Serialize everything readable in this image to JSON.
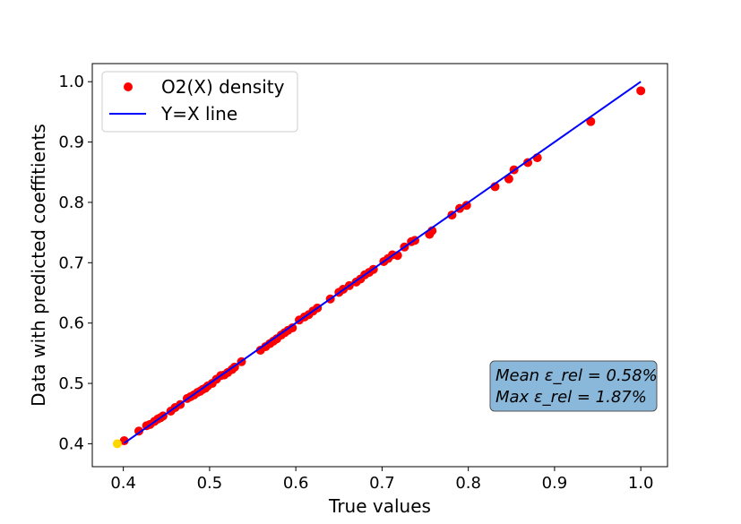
{
  "chart_data": {
    "type": "scatter",
    "title": "",
    "xlabel": "True values",
    "ylabel": "Data with predicted coeffitients",
    "xlim": [
      0.364,
      1.031
    ],
    "ylim": [
      0.362,
      1.03
    ],
    "xticks": [
      "0.4",
      "0.5",
      "0.6",
      "0.7",
      "0.8",
      "0.9",
      "1.0"
    ],
    "yticks": [
      "0.4",
      "0.5",
      "0.6",
      "0.7",
      "0.8",
      "0.9",
      "1.0"
    ],
    "grid": false,
    "legend_position": "top-left",
    "series": [
      {
        "name": "O2(X) density",
        "kind": "scatter",
        "color": "#ff0000",
        "points": [
          [
            0.401,
            0.405
          ],
          [
            0.418,
            0.421
          ],
          [
            0.427,
            0.43
          ],
          [
            0.431,
            0.432
          ],
          [
            0.436,
            0.437
          ],
          [
            0.44,
            0.441
          ],
          [
            0.443,
            0.443
          ],
          [
            0.446,
            0.446
          ],
          [
            0.455,
            0.454
          ],
          [
            0.46,
            0.46
          ],
          [
            0.466,
            0.465
          ],
          [
            0.474,
            0.475
          ],
          [
            0.478,
            0.478
          ],
          [
            0.482,
            0.481
          ],
          [
            0.486,
            0.485
          ],
          [
            0.489,
            0.487
          ],
          [
            0.492,
            0.49
          ],
          [
            0.495,
            0.492
          ],
          [
            0.498,
            0.496
          ],
          [
            0.503,
            0.5
          ],
          [
            0.508,
            0.507
          ],
          [
            0.513,
            0.513
          ],
          [
            0.517,
            0.514
          ],
          [
            0.521,
            0.518
          ],
          [
            0.526,
            0.523
          ],
          [
            0.529,
            0.527
          ],
          [
            0.537,
            0.536
          ],
          [
            0.559,
            0.555
          ],
          [
            0.565,
            0.561
          ],
          [
            0.57,
            0.566
          ],
          [
            0.574,
            0.57
          ],
          [
            0.578,
            0.574
          ],
          [
            0.583,
            0.58
          ],
          [
            0.587,
            0.584
          ],
          [
            0.591,
            0.588
          ],
          [
            0.596,
            0.592
          ],
          [
            0.604,
            0.605
          ],
          [
            0.61,
            0.61
          ],
          [
            0.615,
            0.614
          ],
          [
            0.62,
            0.62
          ],
          [
            0.625,
            0.625
          ],
          [
            0.64,
            0.64
          ],
          [
            0.65,
            0.651
          ],
          [
            0.655,
            0.656
          ],
          [
            0.662,
            0.662
          ],
          [
            0.67,
            0.668
          ],
          [
            0.675,
            0.673
          ],
          [
            0.68,
            0.68
          ],
          [
            0.685,
            0.684
          ],
          [
            0.69,
            0.689
          ],
          [
            0.702,
            0.702
          ],
          [
            0.707,
            0.707
          ],
          [
            0.712,
            0.713
          ],
          [
            0.718,
            0.712
          ],
          [
            0.726,
            0.726
          ],
          [
            0.734,
            0.735
          ],
          [
            0.738,
            0.737
          ],
          [
            0.755,
            0.747
          ],
          [
            0.758,
            0.753
          ],
          [
            0.781,
            0.779
          ],
          [
            0.79,
            0.79
          ],
          [
            0.798,
            0.795
          ],
          [
            0.831,
            0.826
          ],
          [
            0.847,
            0.839
          ],
          [
            0.853,
            0.854
          ],
          [
            0.869,
            0.866
          ],
          [
            0.88,
            0.874
          ],
          [
            0.942,
            0.934
          ],
          [
            1.0,
            0.985
          ]
        ]
      },
      {
        "name": "Y=X line",
        "kind": "line",
        "color": "#0000ff",
        "points": [
          [
            0.401,
            0.401
          ],
          [
            1.0,
            1.0
          ]
        ]
      }
    ],
    "extra_point": {
      "x": 0.393,
      "y": 0.4,
      "color": "#ffd700"
    },
    "annotation": {
      "line1": "Mean ε_rel = 0.58%",
      "line2": "Max ε_rel = 1.87%",
      "box_color": "#8ab8da",
      "position": "bottom-right"
    }
  }
}
